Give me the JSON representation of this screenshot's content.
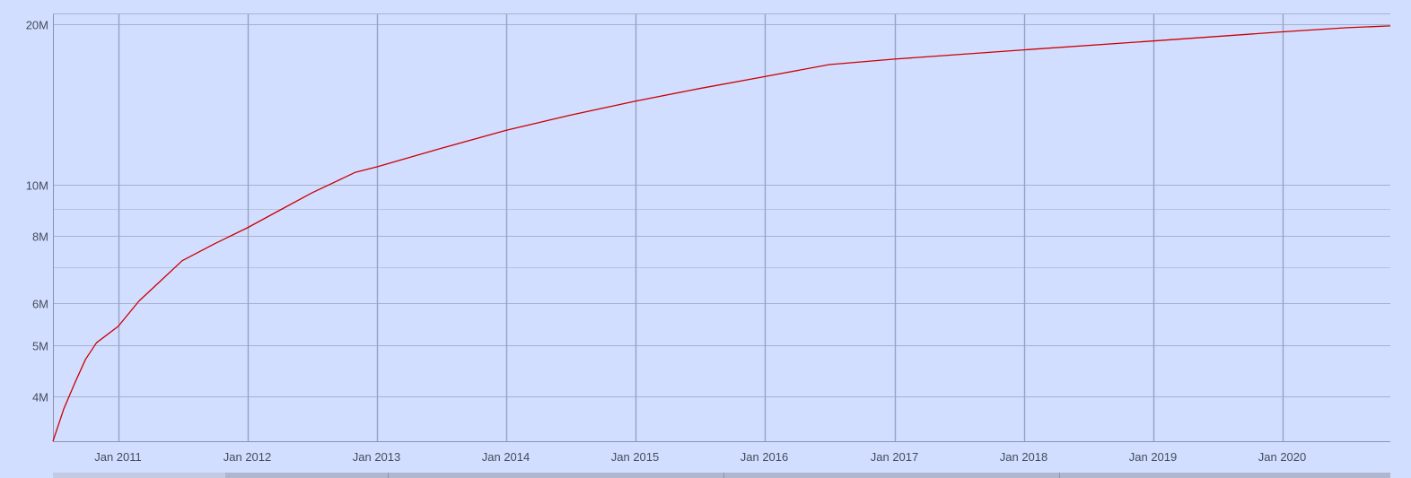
{
  "chart_data": {
    "type": "line",
    "title": "",
    "xlabel": "",
    "ylabel": "",
    "y_scale": "log",
    "grid": true,
    "legend": "none",
    "xlim": [
      "2010-07-01",
      "2020-11-01"
    ],
    "ylim": [
      3300000,
      20000000
    ],
    "x_ticks": [
      {
        "date": "2011-01-01",
        "label": "Jan 2011"
      },
      {
        "date": "2012-01-01",
        "label": "Jan 2012"
      },
      {
        "date": "2013-01-01",
        "label": "Jan 2013"
      },
      {
        "date": "2014-01-01",
        "label": "Jan 2014"
      },
      {
        "date": "2015-01-01",
        "label": "Jan 2015"
      },
      {
        "date": "2016-01-01",
        "label": "Jan 2016"
      },
      {
        "date": "2017-01-01",
        "label": "Jan 2017"
      },
      {
        "date": "2018-01-01",
        "label": "Jan 2018"
      },
      {
        "date": "2019-01-01",
        "label": "Jan 2019"
      },
      {
        "date": "2020-01-01",
        "label": "Jan 2020"
      }
    ],
    "y_ticks": [
      {
        "value": 4000000,
        "label": "4M"
      },
      {
        "value": 5000000,
        "label": "5M"
      },
      {
        "value": 6000000,
        "label": "6M"
      },
      {
        "value": 8000000,
        "label": "8M"
      },
      {
        "value": 10000000,
        "label": "10M"
      },
      {
        "value": 20000000,
        "label": "20M"
      }
    ],
    "y_minor_gridlines": [
      7000000,
      9000000
    ],
    "series": [
      {
        "color": "#cc0000",
        "points": [
          {
            "x": "2010-07-01",
            "y": 3300000
          },
          {
            "x": "2010-08-01",
            "y": 3800000
          },
          {
            "x": "2010-09-01",
            "y": 4250000
          },
          {
            "x": "2010-10-01",
            "y": 4700000
          },
          {
            "x": "2010-11-01",
            "y": 5050000
          },
          {
            "x": "2011-01-01",
            "y": 5420000
          },
          {
            "x": "2011-03-01",
            "y": 6050000
          },
          {
            "x": "2011-05-01",
            "y": 6600000
          },
          {
            "x": "2011-07-01",
            "y": 7200000
          },
          {
            "x": "2011-10-01",
            "y": 7750000
          },
          {
            "x": "2012-01-01",
            "y": 8300000
          },
          {
            "x": "2012-04-01",
            "y": 8950000
          },
          {
            "x": "2012-07-01",
            "y": 9650000
          },
          {
            "x": "2012-11-01",
            "y": 10550000
          },
          {
            "x": "2013-01-01",
            "y": 10800000
          },
          {
            "x": "2013-07-01",
            "y": 11700000
          },
          {
            "x": "2014-01-01",
            "y": 12650000
          },
          {
            "x": "2014-07-01",
            "y": 13500000
          },
          {
            "x": "2015-01-01",
            "y": 14350000
          },
          {
            "x": "2015-07-01",
            "y": 15150000
          },
          {
            "x": "2016-01-01",
            "y": 15950000
          },
          {
            "x": "2016-07-01",
            "y": 16800000
          },
          {
            "x": "2017-01-01",
            "y": 17200000
          },
          {
            "x": "2018-01-01",
            "y": 17900000
          },
          {
            "x": "2019-01-01",
            "y": 18600000
          },
          {
            "x": "2020-01-01",
            "y": 19350000
          },
          {
            "x": "2020-07-01",
            "y": 19700000
          },
          {
            "x": "2020-11-01",
            "y": 19850000
          }
        ]
      }
    ]
  }
}
